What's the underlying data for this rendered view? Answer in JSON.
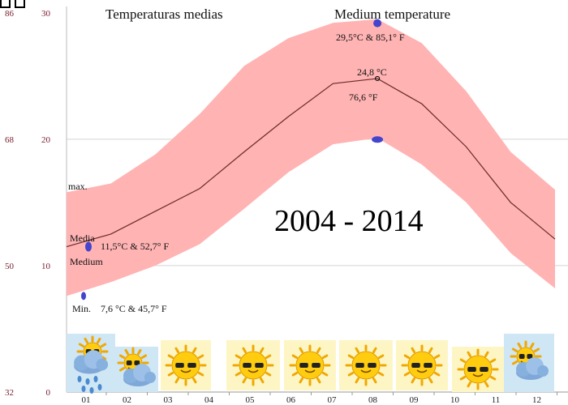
{
  "chart_data": {
    "type": "area",
    "title_es": "Temperaturas medias",
    "title_en": "Medium temperature",
    "period_label": "2004 - 2014",
    "categories": [
      "01",
      "02",
      "03",
      "04",
      "05",
      "06",
      "07",
      "08",
      "09",
      "10",
      "11",
      "12"
    ],
    "series": [
      {
        "name": "max.",
        "values": [
          15.8,
          16.5,
          18.8,
          22.0,
          25.8,
          28.0,
          29.2,
          29.5,
          27.6,
          23.8,
          19.0,
          16.0
        ]
      },
      {
        "name": "Media",
        "values": [
          11.5,
          12.5,
          14.3,
          16.1,
          19.0,
          21.8,
          24.4,
          24.8,
          22.8,
          19.4,
          15.0,
          12.1
        ]
      },
      {
        "name": "Min.",
        "values": [
          7.6,
          8.7,
          10.0,
          11.7,
          14.5,
          17.4,
          19.6,
          20.1,
          18.0,
          15.0,
          11.0,
          8.2
        ]
      }
    ],
    "y_left_outer_ticks": [
      "86",
      "68",
      "50",
      "32"
    ],
    "y_left_ticks": [
      "30",
      "20",
      "10",
      "0"
    ],
    "ylim": [
      0,
      30.5
    ],
    "grid": true,
    "colors": {
      "band": "#ffb3b3",
      "line": "#6b2a2a",
      "dot": "#4444cc",
      "axis_text": "#7a2030"
    },
    "annotations": {
      "max_label": "max.",
      "media_label": "Media",
      "medium_label": "Medium",
      "min_label": "Min.",
      "jan_media_value": "11,5°C  &  52,7° F",
      "jan_min_value": "7,6 °C  &  45,7° F",
      "aug_max_value": "29,5°C  &  85,1° F",
      "aug_media_c": "24,8 °C",
      "aug_media_f": "76,6 °F"
    },
    "weather_icons": [
      "sun-cloud-rain-icon",
      "sun-cloud-icon",
      "sun-icon",
      "",
      "sun-icon",
      "sun-icon",
      "sun-icon",
      "sun-icon",
      "sun-icon",
      "sun-cloud-icon",
      "",
      "sun-cloud-rain-icon"
    ]
  }
}
